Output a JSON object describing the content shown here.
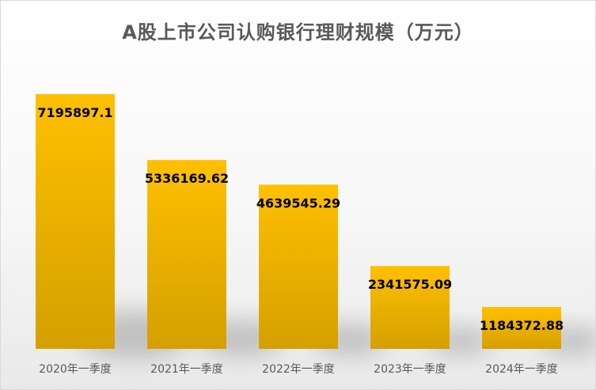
{
  "chart_data": {
    "type": "bar",
    "title": "A股上市公司认购银行理财规模（万元）",
    "categories": [
      "2020年一季度",
      "2021年一季度",
      "2022年一季度",
      "2023年一季度",
      "2024年一季度"
    ],
    "values": [
      7195897.1,
      5336169.62,
      4639545.29,
      2341575.09,
      1184372.88
    ],
    "value_labels": [
      "7195897.1",
      "5336169.62",
      "4639545.29",
      "2341575.09",
      "1184372.88"
    ],
    "bar_color_top": "#FFC000",
    "bar_color_bottom": "#D4A000",
    "xlabel": "",
    "ylabel": "",
    "ylim": [
      0,
      7195897.1
    ],
    "grid": false,
    "legend": "none",
    "data_labels": "inside-top"
  }
}
